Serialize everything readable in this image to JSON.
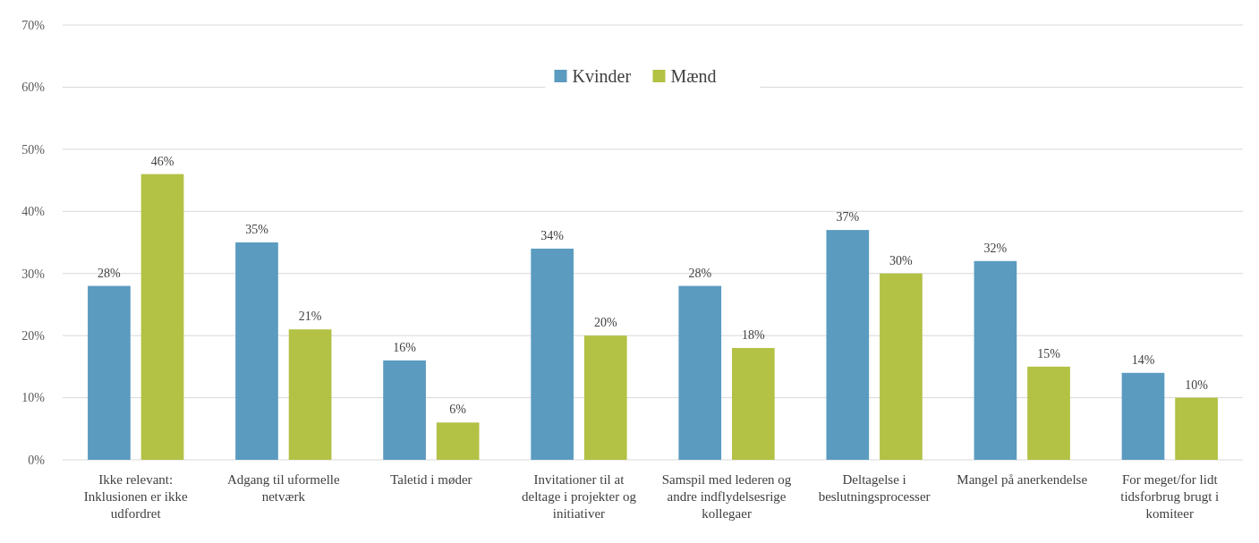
{
  "chart_data": {
    "type": "bar",
    "categories": [
      "Ikke relevant: Inklusionen er ikke udfordret",
      "Adgang til uformelle netværk",
      "Taletid i møder",
      "Invitationer til at deltage i projekter og initiativer",
      "Samspil med lederen og andre indflydelsesrige kollegaer",
      "Deltagelse i beslutningsprocesser",
      "Mangel på anerkendelse",
      "For meget/for lidt tidsforbrug brugt i komiteer"
    ],
    "series": [
      {
        "name": "Kvinder",
        "color": "#5b9bc0",
        "values": [
          28,
          35,
          16,
          34,
          28,
          37,
          32,
          14
        ],
        "value_labels": [
          "28%",
          "35%",
          "16%",
          "34%",
          "28%",
          "37%",
          "32%",
          "14%"
        ]
      },
      {
        "name": "Mænd",
        "color": "#b3c144",
        "values": [
          46,
          21,
          6,
          20,
          18,
          30,
          15,
          10
        ],
        "value_labels": [
          "46%",
          "21%",
          "6%",
          "20%",
          "18%",
          "30%",
          "15%",
          "10%"
        ]
      }
    ],
    "ylim": [
      0,
      70
    ],
    "yticks": [
      {
        "value": 0,
        "label": "0%"
      },
      {
        "value": 10,
        "label": "10%"
      },
      {
        "value": 20,
        "label": "20%"
      },
      {
        "value": 30,
        "label": "30%"
      },
      {
        "value": 40,
        "label": "40%"
      },
      {
        "value": 50,
        "label": "50%"
      },
      {
        "value": 60,
        "label": "60%"
      },
      {
        "value": 70,
        "label": "70%"
      }
    ],
    "grid": "y",
    "legend": "top"
  }
}
